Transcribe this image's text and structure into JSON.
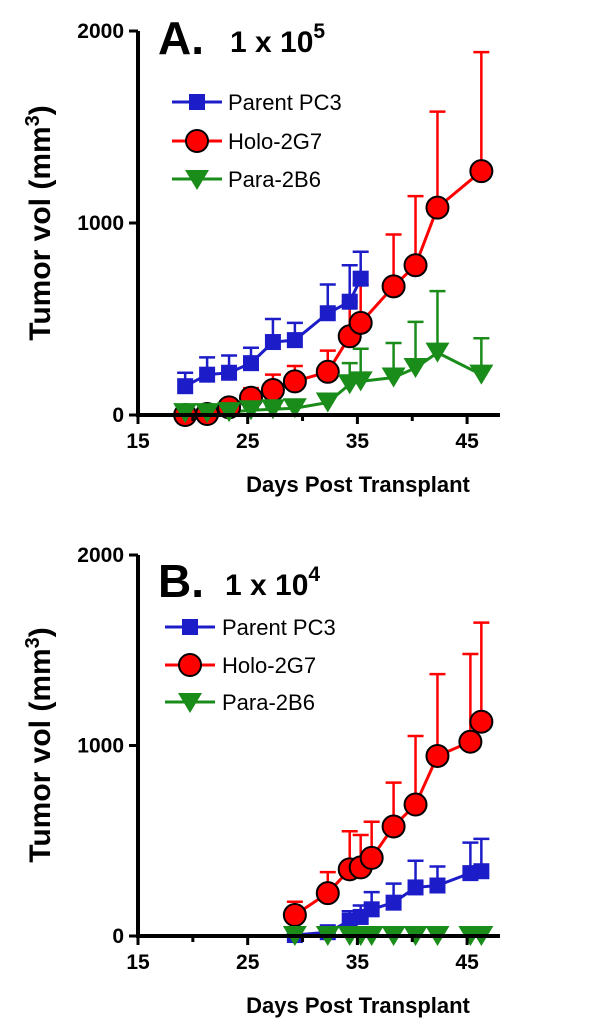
{
  "chart_data": [
    {
      "type": "line",
      "panel_letter": "A.",
      "title_base": "1 x 10",
      "title_exp": "5",
      "xlabel": "Days Post Transplant",
      "ylabel_base": "Tumor vol (mm",
      "ylabel_exp": "3",
      "ylabel_close": ")",
      "xlim": [
        15,
        48
      ],
      "ylim": [
        0,
        2000
      ],
      "xticks": [
        15,
        25,
        35,
        45
      ],
      "yticks": [
        0,
        1000,
        2000
      ],
      "xtick_labels": [
        "15",
        "25",
        "35",
        "45"
      ],
      "ytick_labels": [
        "0",
        "1000",
        "2000"
      ],
      "legend_position": "top-left",
      "series": [
        {
          "name": "Parent PC3",
          "color": "#1c1cc8",
          "marker": "square",
          "x": [
            19.3,
            21.3,
            23.3,
            25.3,
            27.3,
            29.3,
            32.3,
            34.3,
            35.3
          ],
          "y": [
            150,
            210,
            220,
            270,
            380,
            390,
            530,
            590,
            710
          ],
          "err": [
            70,
            90,
            90,
            80,
            120,
            90,
            150,
            190,
            140
          ]
        },
        {
          "name": "Holo-2G7",
          "color": "#ff0000",
          "marker": "circle",
          "x": [
            19.3,
            21.3,
            23.3,
            25.3,
            27.3,
            29.3,
            32.3,
            34.3,
            35.3,
            38.3,
            40.3,
            42.3,
            46.3
          ],
          "y": [
            0,
            5,
            40,
            90,
            130,
            175,
            225,
            410,
            480,
            670,
            780,
            1080,
            1270
          ],
          "err": [
            10,
            15,
            30,
            50,
            80,
            80,
            110,
            180,
            200,
            270,
            360,
            500,
            620
          ]
        },
        {
          "name": "Para-2B6",
          "color": "#1a8c1a",
          "marker": "triangle-down",
          "x": [
            19.3,
            21.3,
            23.3,
            25.3,
            27.3,
            29.3,
            32.3,
            34.3,
            35.3,
            38.3,
            40.3,
            42.3,
            46.3
          ],
          "y": [
            10,
            10,
            15,
            25,
            30,
            35,
            65,
            160,
            175,
            195,
            245,
            325,
            210
          ],
          "err": [
            5,
            5,
            10,
            15,
            15,
            20,
            30,
            110,
            170,
            180,
            240,
            320,
            190
          ]
        }
      ]
    },
    {
      "type": "line",
      "panel_letter": "B.",
      "title_base": "1 x 10",
      "title_exp": "4",
      "xlabel": "Days Post Transplant",
      "ylabel_base": "Tumor vol (mm",
      "ylabel_exp": "3",
      "ylabel_close": ")",
      "xlim": [
        15,
        48
      ],
      "ylim": [
        0,
        2000
      ],
      "xticks": [
        15,
        25,
        35,
        45
      ],
      "yticks": [
        0,
        1000,
        2000
      ],
      "xtick_labels": [
        "15",
        "25",
        "35",
        "45"
      ],
      "ytick_labels": [
        "0",
        "1000",
        "2000"
      ],
      "legend_position": "top-right",
      "series": [
        {
          "name": "Parent PC3",
          "color": "#1c1cc8",
          "marker": "square",
          "x": [
            29.3,
            32.3,
            34.3,
            35.3,
            36.3,
            38.3,
            40.3,
            42.3,
            45.3,
            46.3
          ],
          "y": [
            5,
            20,
            80,
            100,
            140,
            175,
            255,
            265,
            330,
            340
          ],
          "err": [
            5,
            20,
            50,
            60,
            90,
            100,
            140,
            100,
            160,
            170
          ]
        },
        {
          "name": "Holo-2G7",
          "color": "#ff0000",
          "marker": "circle",
          "x": [
            29.3,
            32.3,
            34.3,
            35.3,
            36.3,
            38.3,
            40.3,
            42.3,
            45.3,
            46.3
          ],
          "y": [
            110,
            225,
            350,
            360,
            410,
            575,
            690,
            945,
            1020,
            1125
          ],
          "err": [
            70,
            110,
            200,
            170,
            190,
            230,
            360,
            430,
            460,
            520
          ]
        },
        {
          "name": "Para-2B6",
          "color": "#1a8c1a",
          "marker": "triangle-down",
          "x": [
            29.3,
            32.3,
            34.3,
            35.3,
            36.3,
            38.3,
            40.3,
            42.3,
            45.3,
            46.3
          ],
          "y": [
            0,
            0,
            0,
            0,
            0,
            0,
            0,
            0,
            0,
            0
          ],
          "err": [
            0,
            0,
            0,
            0,
            0,
            0,
            0,
            0,
            0,
            0
          ]
        }
      ]
    }
  ]
}
